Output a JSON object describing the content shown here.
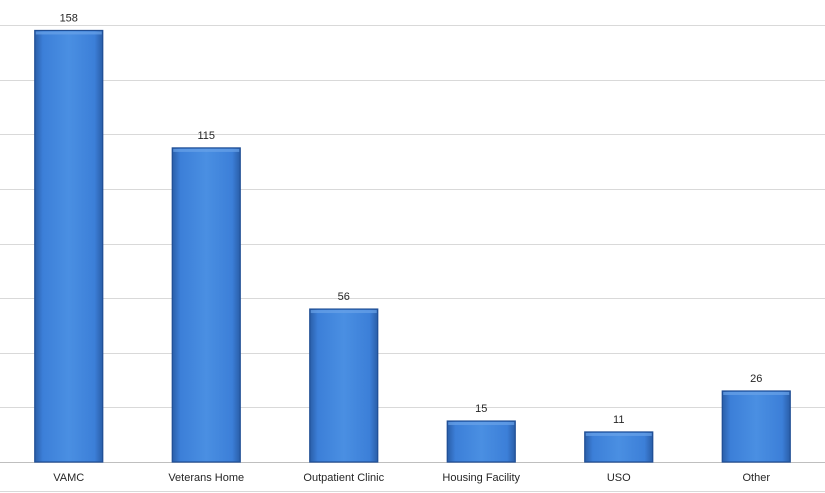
{
  "chart_data": {
    "type": "bar",
    "categories": [
      "VAMC",
      "Veterans Home",
      "Outpatient Clinic",
      "Housing Facility",
      "USO",
      "Other"
    ],
    "values": [
      158,
      115,
      56,
      15,
      11,
      26
    ],
    "title": "",
    "xlabel": "",
    "ylabel": "",
    "ylim": [
      0,
      160
    ],
    "grid": true,
    "legend": "none",
    "colors": {
      "bar": "#3c7fd8",
      "bar_dark": "#1f4e95",
      "bar_light": "#6aa2e8"
    }
  }
}
